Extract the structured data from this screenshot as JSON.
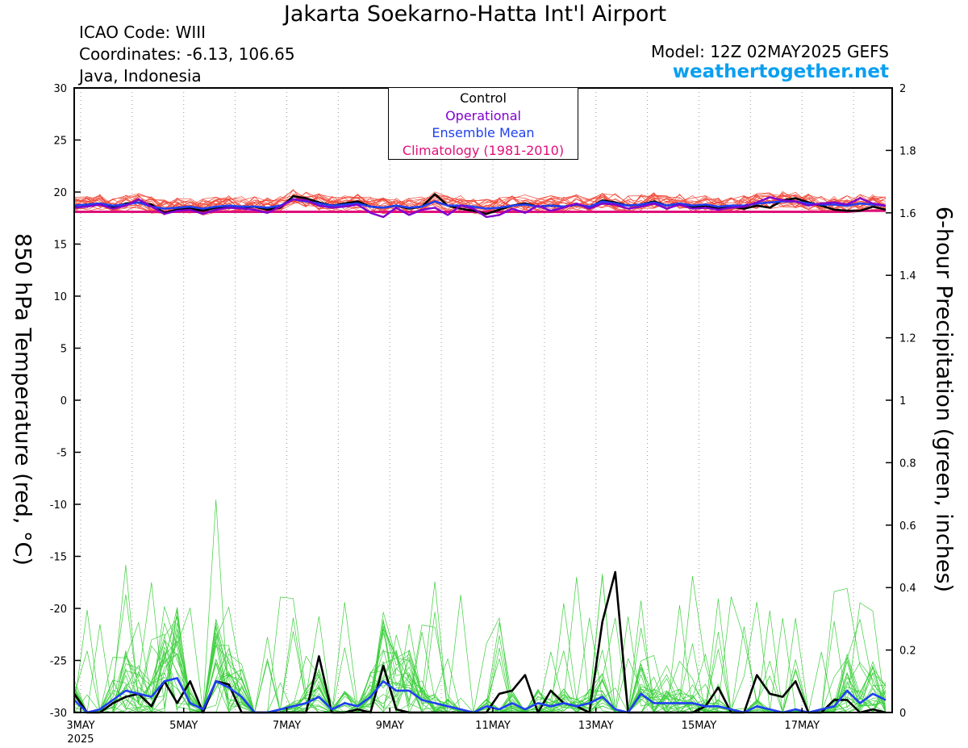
{
  "header": {
    "title": "Jakarta Soekarno-Hatta Int'l Airport",
    "icao": "ICAO Code: WIII",
    "coordinates": "Coordinates: -6.13, 106.65",
    "region": "Java, Indonesia",
    "model": "Model: 12Z 02MAY2025 GEFS",
    "site": "weathertogether.net"
  },
  "legend": {
    "control": "Control",
    "operational": "Operational",
    "ensemble_mean": "Ensemble Mean",
    "climatology": "Climatology (1981-2010)"
  },
  "colors": {
    "control": "#000000",
    "operational": "#8000d0",
    "ensemble_mean": "#2040f0",
    "climatology": "#e0107a",
    "temp_members": "#f04a3a",
    "precip_members": "#3ccf3c",
    "site": "#0a9ff0"
  },
  "chart_data": {
    "type": "line",
    "ylabel": "850 hPa Temperature (red, °C)",
    "y2label": "6-hour Precipitation (green, inches)",
    "ylim": [
      -30,
      30
    ],
    "y2lim": [
      0,
      2
    ],
    "yticks": [
      30,
      25,
      20,
      15,
      10,
      5,
      0,
      -5,
      -10,
      -15,
      -20,
      -25,
      -30
    ],
    "y2ticks": [
      2,
      1.8,
      1.6,
      1.4,
      1.2,
      1,
      0.8,
      0.6,
      0.4,
      0.2,
      0
    ],
    "xlim": [
      "2025-05-02T21",
      "2025-05-18T18"
    ],
    "xtick_labels": [
      "3MAY",
      "5MAY",
      "7MAY",
      "9MAY",
      "11MAY",
      "13MAY",
      "15MAY",
      "17MAY"
    ],
    "xtick_dates": [
      "2025-05-03",
      "2025-05-05",
      "2025-05-07",
      "2025-05-09",
      "2025-05-11",
      "2025-05-13",
      "2025-05-15",
      "2025-05-17"
    ],
    "year_label": "2025",
    "grid": "dotted vertical lines at day boundaries",
    "legend_position": "top-center",
    "time_step_hours": 6,
    "series": [
      {
        "key": "climatology",
        "axis": "temperature",
        "values": [
          18.1,
          18.1,
          18.1,
          18.1,
          18.1,
          18.1,
          18.1,
          18.1,
          18.1,
          18.1,
          18.1,
          18.1,
          18.1,
          18.1,
          18.1,
          18.1,
          18.1,
          18.1,
          18.1,
          18.1,
          18.1,
          18.1,
          18.1,
          18.1,
          18.1,
          18.1,
          18.1,
          18.1,
          18.1,
          18.1,
          18.1,
          18.1,
          18.1,
          18.1,
          18.1,
          18.1,
          18.1,
          18.1,
          18.1,
          18.1,
          18.1,
          18.1,
          18.1,
          18.1,
          18.1,
          18.1,
          18.1,
          18.1,
          18.1,
          18.1,
          18.1,
          18.1,
          18.1,
          18.1,
          18.1,
          18.1,
          18.1,
          18.1,
          18.1,
          18.1,
          18.1,
          18.2,
          18.2,
          18.2
        ]
      },
      {
        "key": "control",
        "axis": "temperature",
        "values": [
          18.7,
          18.8,
          18.9,
          18.5,
          18.9,
          19.0,
          18.8,
          18.0,
          18.3,
          18.4,
          18.2,
          18.5,
          18.6,
          18.5,
          18.6,
          18.3,
          18.5,
          19.6,
          19.4,
          19.0,
          18.7,
          18.9,
          19.1,
          18.6,
          18.5,
          18.7,
          18.4,
          18.6,
          19.8,
          18.7,
          18.4,
          18.2,
          17.9,
          18.3,
          18.7,
          18.9,
          18.6,
          18.7,
          18.6,
          18.8,
          18.5,
          19.2,
          19.0,
          18.7,
          18.8,
          19.1,
          18.7,
          18.9,
          18.5,
          18.7,
          18.4,
          18.6,
          18.4,
          18.7,
          18.5,
          19.2,
          19.4,
          19.0,
          18.7,
          18.3,
          18.2,
          18.2,
          18.6,
          18.3
        ]
      },
      {
        "key": "operational",
        "axis": "temperature",
        "values": [
          18.5,
          18.6,
          18.8,
          18.4,
          18.7,
          19.3,
          18.6,
          17.9,
          18.2,
          18.3,
          17.9,
          18.3,
          18.5,
          18.4,
          18.3,
          18.0,
          18.6,
          19.3,
          19.2,
          18.7,
          18.5,
          18.6,
          18.8,
          18.0,
          17.6,
          18.5,
          17.8,
          18.3,
          18.5,
          17.8,
          18.7,
          18.4,
          17.6,
          17.8,
          18.4,
          18.0,
          18.7,
          18.2,
          18.5,
          18.9,
          18.4,
          18.9,
          18.8,
          18.4,
          18.6,
          18.9,
          18.4,
          18.8,
          18.4,
          18.5,
          18.3,
          18.5,
          18.6,
          19.0,
          19.5,
          19.2,
          19.1,
          18.7,
          18.9,
          19.0,
          18.8,
          19.4,
          18.9,
          18.7
        ]
      },
      {
        "key": "ensemble_mean",
        "axis": "temperature",
        "values": [
          18.7,
          18.8,
          18.9,
          18.7,
          18.8,
          19.0,
          18.6,
          18.4,
          18.5,
          18.6,
          18.4,
          18.6,
          18.7,
          18.6,
          18.6,
          18.5,
          18.7,
          19.3,
          19.1,
          18.9,
          18.7,
          18.8,
          18.9,
          18.6,
          18.5,
          18.7,
          18.5,
          18.6,
          19.1,
          18.7,
          18.7,
          18.6,
          18.4,
          18.5,
          18.7,
          18.8,
          18.6,
          18.7,
          18.6,
          18.8,
          18.6,
          19.1,
          18.9,
          18.7,
          18.8,
          19.0,
          18.7,
          18.9,
          18.7,
          18.8,
          18.6,
          18.7,
          18.7,
          18.9,
          19.0,
          19.1,
          19.1,
          18.9,
          18.8,
          18.8,
          18.7,
          18.9,
          18.8,
          18.7
        ]
      },
      {
        "key": "control",
        "axis": "precipitation",
        "values": [
          0.06,
          0.0,
          0.0,
          0.03,
          0.05,
          0.06,
          0.02,
          0.1,
          0.03,
          0.1,
          0.0,
          0.1,
          0.09,
          0.0,
          0.0,
          0.0,
          0.0,
          0.0,
          0.0,
          0.18,
          0.0,
          0.0,
          0.01,
          0.0,
          0.15,
          0.01,
          0.0,
          0.0,
          0.0,
          0.0,
          0.0,
          0.0,
          0.0,
          0.06,
          0.07,
          0.12,
          0.0,
          0.07,
          0.03,
          0.02,
          0.0,
          0.29,
          0.45,
          0.0,
          0.0,
          0.0,
          0.0,
          0.0,
          0.0,
          0.02,
          0.08,
          0.0,
          0.0,
          0.12,
          0.06,
          0.05,
          0.1,
          0.0,
          0.0,
          0.04,
          0.04,
          0.0,
          0.01,
          0.0
        ]
      },
      {
        "key": "ensemble_mean",
        "axis": "precipitation",
        "values": [
          0.04,
          0.0,
          0.01,
          0.04,
          0.07,
          0.06,
          0.05,
          0.1,
          0.11,
          0.03,
          0.01,
          0.1,
          0.08,
          0.05,
          0.0,
          0.0,
          0.01,
          0.02,
          0.03,
          0.05,
          0.01,
          0.03,
          0.02,
          0.05,
          0.1,
          0.07,
          0.07,
          0.04,
          0.03,
          0.02,
          0.01,
          0.0,
          0.02,
          0.01,
          0.03,
          0.01,
          0.03,
          0.02,
          0.03,
          0.02,
          0.03,
          0.05,
          0.01,
          0.0,
          0.06,
          0.03,
          0.03,
          0.03,
          0.03,
          0.02,
          0.02,
          0.01,
          0.0,
          0.02,
          0.01,
          0.0,
          0.01,
          0.0,
          0.01,
          0.02,
          0.07,
          0.03,
          0.06,
          0.04
        ]
      }
    ]
  }
}
